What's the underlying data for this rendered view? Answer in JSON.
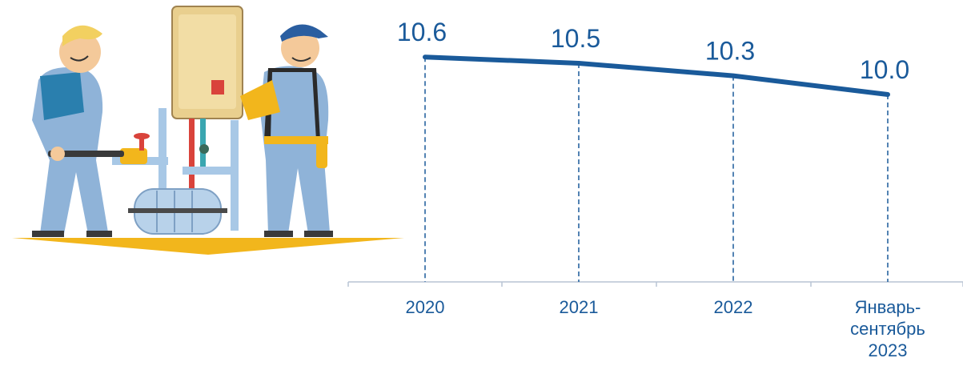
{
  "chart_data": {
    "type": "line",
    "categories": [
      "2020",
      "2021",
      "2022",
      "Январь-сентябрь 2023"
    ],
    "category_lines": [
      [
        "2020"
      ],
      [
        "2021"
      ],
      [
        "2022"
      ],
      [
        "Январь-",
        "сентябрь",
        "2023"
      ]
    ],
    "values": [
      10.6,
      10.5,
      10.3,
      10.0
    ],
    "data_labels": [
      "10.6",
      "10.5",
      "10.3",
      "10.0"
    ],
    "title": "",
    "xlabel": "",
    "ylabel": "",
    "ylim": [
      7.0,
      11.0
    ],
    "grid": false,
    "legend": "none",
    "line_color": "#1a5a9a",
    "axis_color": "#b8c4d4"
  },
  "illustration": {
    "icon": "plumbers-illustration-icon"
  }
}
